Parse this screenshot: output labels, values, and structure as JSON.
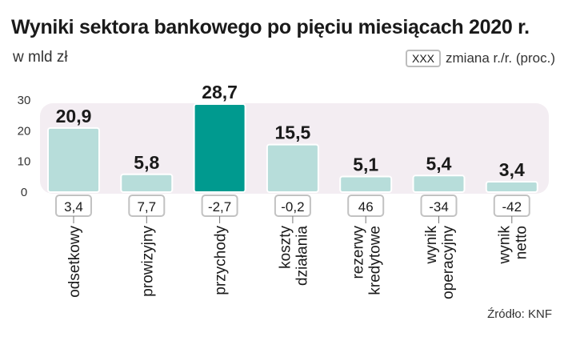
{
  "header": {
    "title": "Wyniki sektora bankowego po pięciu miesiącach 2020 r.",
    "subtitle": "w mld zł"
  },
  "legend": {
    "box_label": "XXX",
    "text": "zmiana r./r. (proc.)"
  },
  "footer": {
    "source": "Źródło: KNF"
  },
  "colors": {
    "bar": "#b7ddda",
    "bar_highlight": "#009a8f",
    "bar_border": "#ffffff",
    "panel": "#f3edf2",
    "change_box_border": "#c2c2c2"
  },
  "chart_data": {
    "type": "bar",
    "title": "Wyniki sektora bankowego po pięciu miesiącach 2020 r.",
    "ylabel": "w mld zł",
    "ylim": [
      0,
      30
    ],
    "yticks": [
      "0",
      "10",
      "20",
      "30"
    ],
    "grid": false,
    "categories": [
      [
        "odsetkowy"
      ],
      [
        "prowizyjny"
      ],
      [
        "przychody"
      ],
      [
        "koszty",
        "działania"
      ],
      [
        "rezerwy",
        "kredytowe"
      ],
      [
        "wynik",
        "operacyjny"
      ],
      [
        "wynik",
        "netto"
      ]
    ],
    "values": [
      20.9,
      5.8,
      28.7,
      15.5,
      5.1,
      5.4,
      3.4
    ],
    "value_labels": [
      "20,9",
      "5,8",
      "28,7",
      "15,5",
      "5,1",
      "5,4",
      "3,4"
    ],
    "change_labels": [
      "3,4",
      "7,7",
      "-2,7",
      "-0,2",
      "46",
      "-34",
      "-42"
    ],
    "highlight_index": 2
  }
}
